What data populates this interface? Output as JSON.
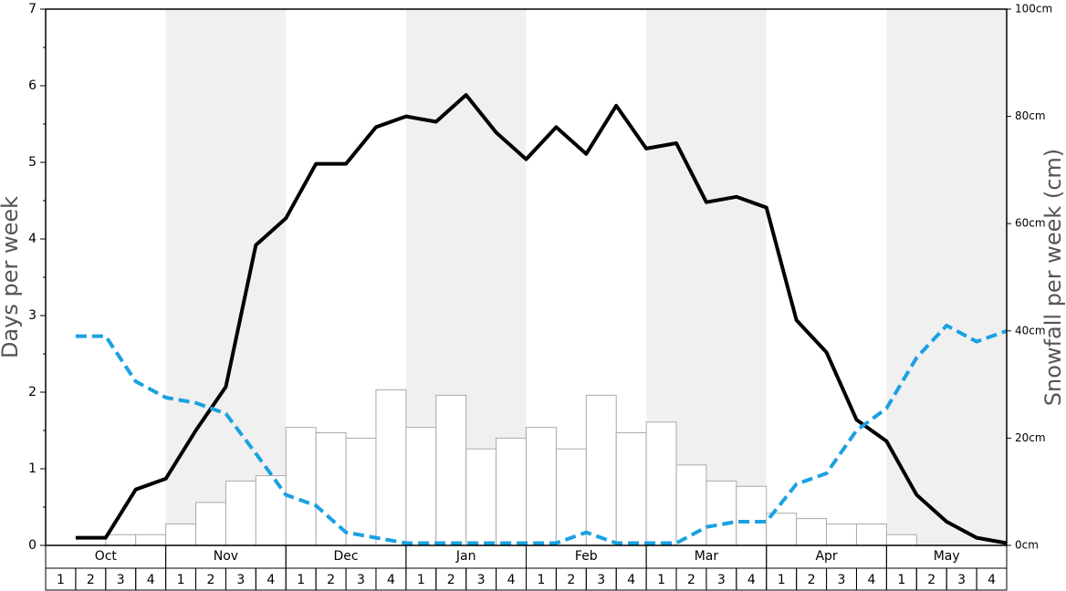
{
  "chart_data": {
    "type": "bar_line",
    "y_label": "Days per week",
    "y2_label": "Snowfall per week (cm)",
    "months": [
      "Oct",
      "Nov",
      "Dec",
      "Jan",
      "Feb",
      "Mar",
      "Apr",
      "May"
    ],
    "categories": [
      "1",
      "2",
      "3",
      "4",
      "1",
      "2",
      "3",
      "4",
      "1",
      "2",
      "3",
      "4",
      "1",
      "2",
      "3",
      "4",
      "1",
      "2",
      "3",
      "4",
      "1",
      "2",
      "3",
      "4",
      "1",
      "2",
      "3",
      "4",
      "1",
      "2",
      "3",
      "4"
    ],
    "ylim": [
      0,
      7
    ],
    "yticks": [
      0,
      1,
      2,
      3,
      4,
      5,
      6,
      7
    ],
    "y2lim": [
      0,
      100
    ],
    "y2ticks": [
      {
        "value": 0,
        "label": "0cm"
      },
      {
        "value": 20,
        "label": "20cm"
      },
      {
        "value": 40,
        "label": "40cm"
      },
      {
        "value": 60,
        "label": "60cm"
      },
      {
        "value": 80,
        "label": "80cm"
      },
      {
        "value": 100,
        "label": "100cm"
      }
    ],
    "series": [
      {
        "type": "bar",
        "axis": "y2",
        "color": "#ffffff",
        "values": [
          0,
          0,
          2,
          2,
          4,
          8,
          12,
          13,
          22,
          21,
          20,
          29,
          22,
          28,
          18,
          20,
          22,
          18,
          28,
          21,
          23,
          15,
          12,
          11,
          6,
          5,
          4,
          4,
          2,
          0,
          0,
          0
        ]
      },
      {
        "type": "line",
        "color": "#000000",
        "values": [
          0.1,
          0.1,
          0.73,
          0.87,
          1.5,
          2.07,
          3.92,
          4.27,
          4.98,
          4.98,
          5.46,
          5.6,
          5.53,
          5.88,
          5.39,
          5.04,
          5.46,
          5.11,
          5.74,
          5.18,
          5.25,
          4.48,
          4.55,
          4.41,
          2.94,
          2.52,
          1.64,
          1.36,
          0.66,
          0.31,
          0.1,
          0.03
        ]
      },
      {
        "type": "line",
        "dashed": true,
        "color": "#1ba1e2",
        "values": [
          2.73,
          2.73,
          2.14,
          1.93,
          1.86,
          1.72,
          1.2,
          0.66,
          0.52,
          0.17,
          0.1,
          0.03,
          0.03,
          0.03,
          0.03,
          0.03,
          0.03,
          0.17,
          0.03,
          0.03,
          0.03,
          0.24,
          0.31,
          0.31,
          0.8,
          0.94,
          1.5,
          1.79,
          2.45,
          2.87,
          2.66,
          2.8
        ]
      }
    ]
  }
}
